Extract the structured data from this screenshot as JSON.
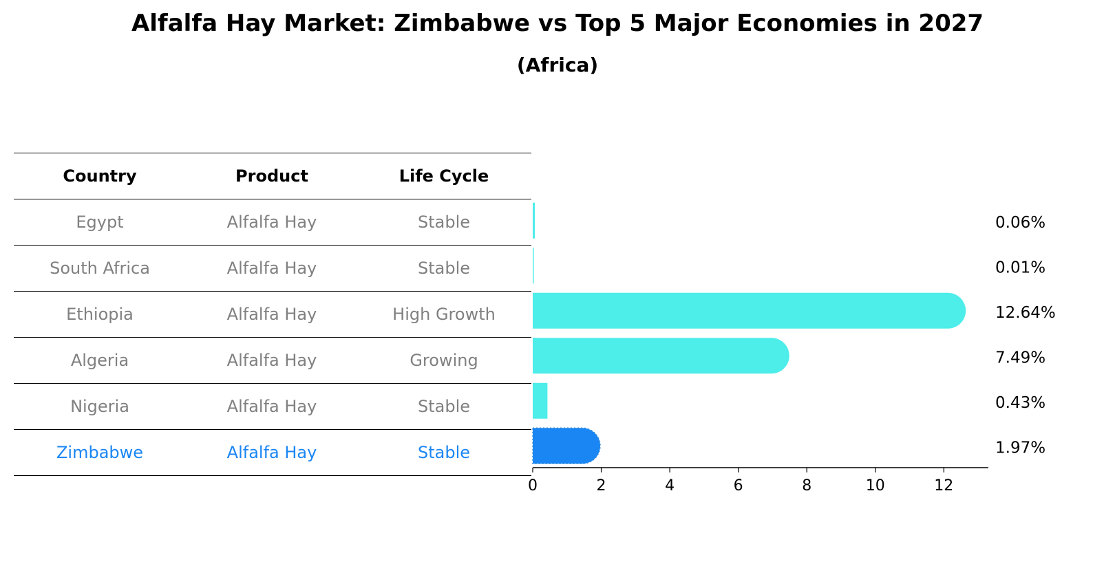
{
  "title": "Alfalfa Hay Market: Zimbabwe vs Top 5 Major Economies in 2027",
  "subtitle": "(Africa)",
  "table": {
    "headers": [
      "Country",
      "Product",
      "Life Cycle"
    ],
    "rows": [
      {
        "country": "Egypt",
        "product": "Alfalfa Hay",
        "life_cycle": "Stable",
        "highlight": false
      },
      {
        "country": "South Africa",
        "product": "Alfalfa Hay",
        "life_cycle": "Stable",
        "highlight": false
      },
      {
        "country": "Ethiopia",
        "product": "Alfalfa Hay",
        "life_cycle": "High Growth",
        "highlight": false
      },
      {
        "country": "Algeria",
        "product": "Alfalfa Hay",
        "life_cycle": "Growing",
        "highlight": false
      },
      {
        "country": "Nigeria",
        "product": "Alfalfa Hay",
        "life_cycle": "Stable",
        "highlight": false
      },
      {
        "country": "Zimbabwe",
        "product": "Alfalfa Hay",
        "life_cycle": "Stable",
        "highlight": true
      }
    ]
  },
  "colors": {
    "bar": "#4DEDEA",
    "highlight": "#1A86F4",
    "muted_text": "#808080",
    "text": "#000000"
  },
  "chart_data": {
    "type": "bar",
    "orientation": "horizontal",
    "categories": [
      "Egypt",
      "South Africa",
      "Ethiopia",
      "Algeria",
      "Nigeria",
      "Zimbabwe"
    ],
    "values": [
      0.06,
      0.01,
      12.64,
      7.49,
      0.43,
      1.97
    ],
    "value_labels": [
      "0.06%",
      "0.01%",
      "12.64%",
      "7.49%",
      "0.43%",
      "1.97%"
    ],
    "highlight_index": 5,
    "xlim": [
      0,
      13.3
    ],
    "xticks": [
      0,
      2,
      4,
      6,
      8,
      10,
      12
    ],
    "xlabel": "",
    "ylabel": "",
    "grid": false
  }
}
